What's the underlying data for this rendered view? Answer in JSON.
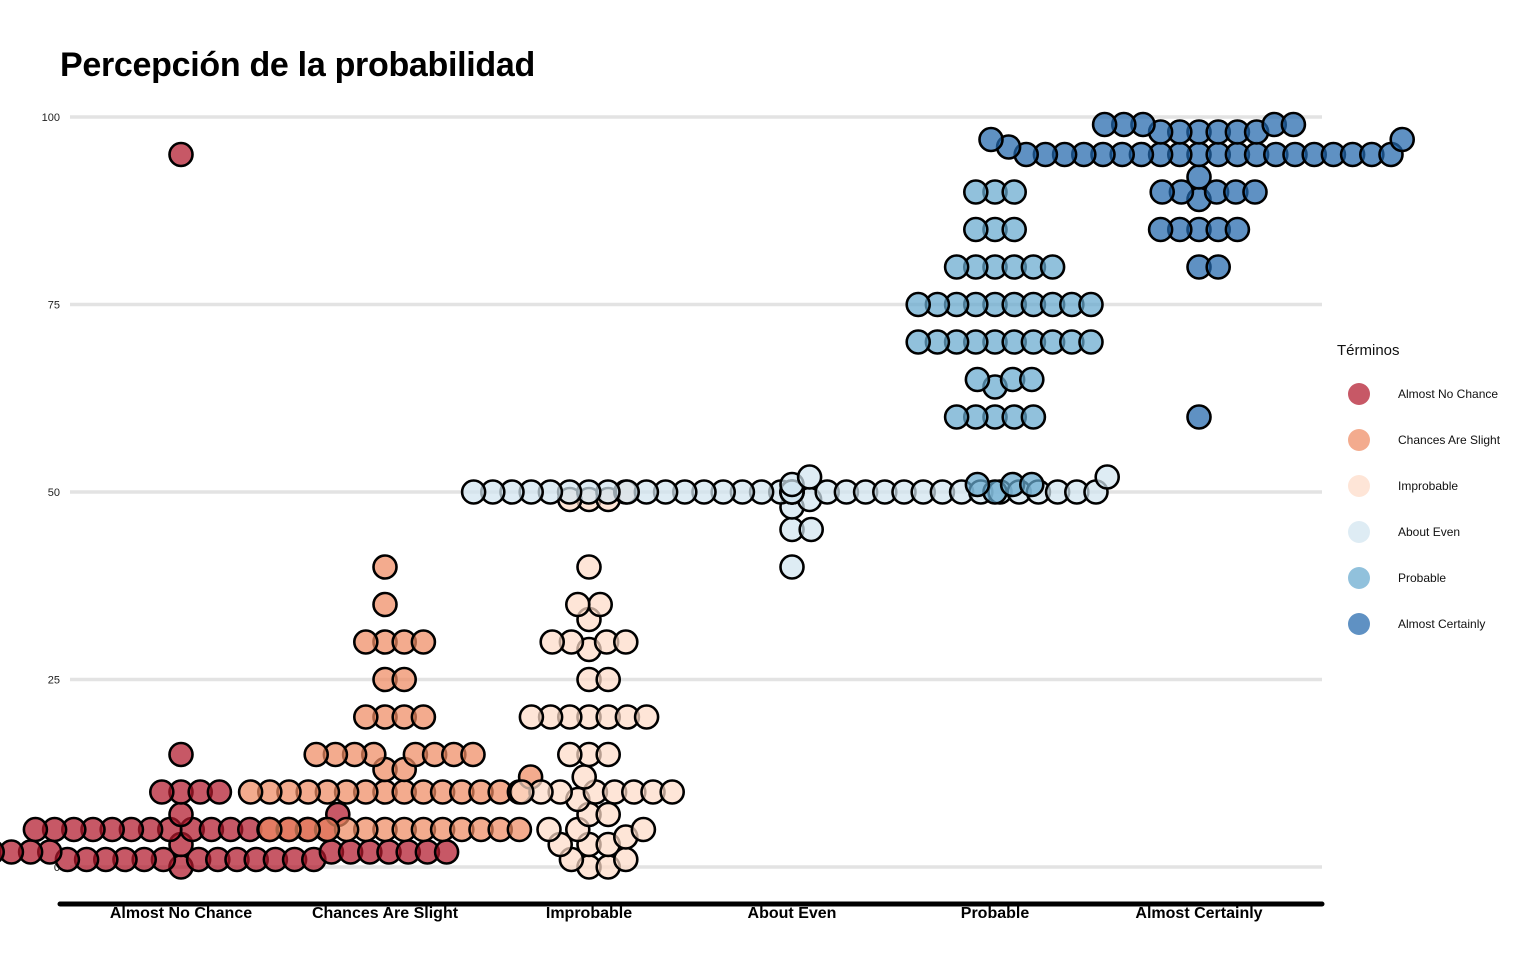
{
  "chart_data": {
    "type": "scatter",
    "title": "Percepción de la probabilidad",
    "xlabel": "",
    "ylabel": "",
    "ylim": [
      0,
      100
    ],
    "yticks": [
      0,
      25,
      50,
      75,
      100
    ],
    "grid": true,
    "legend_title": "Términos",
    "legend_position": "right",
    "categories": [
      "Almost No Chance",
      "Chances Are Slight",
      "Improbable",
      "About Even",
      "Probable",
      "Almost Certainly"
    ],
    "series": [
      {
        "name": "Almost No Chance",
        "color": "#b2182b",
        "values": [
          95,
          15,
          10,
          10,
          10,
          10,
          7,
          7,
          5,
          5,
          5,
          5,
          5,
          5,
          5,
          5,
          5,
          5,
          5,
          5,
          5,
          5,
          5,
          5,
          3,
          3,
          2,
          2,
          2,
          2,
          2,
          2,
          2,
          2,
          2,
          2,
          2,
          2,
          2,
          2,
          1,
          1,
          1,
          1,
          1,
          1,
          1,
          1,
          1,
          1,
          1,
          1,
          1,
          0
        ]
      },
      {
        "name": "Chances Are Slight",
        "color": "#ef8a62",
        "values": [
          40,
          35,
          30,
          30,
          30,
          30,
          25,
          25,
          20,
          20,
          20,
          20,
          15,
          15,
          15,
          15,
          15,
          15,
          15,
          15,
          13,
          13,
          12,
          10,
          10,
          10,
          10,
          10,
          10,
          10,
          10,
          10,
          10,
          10,
          10,
          10,
          10,
          10,
          5,
          5,
          5,
          5,
          5,
          5,
          5,
          5,
          5,
          5,
          5,
          5,
          5,
          5
        ]
      },
      {
        "name": "Improbable",
        "color": "#fddbc7",
        "values": [
          50,
          49,
          49,
          49,
          40,
          35,
          35,
          33,
          30,
          30,
          30,
          30,
          29,
          25,
          25,
          20,
          20,
          20,
          20,
          20,
          20,
          20,
          15,
          15,
          15,
          12,
          10,
          10,
          10,
          10,
          10,
          10,
          10,
          10,
          9,
          7,
          7,
          5,
          5,
          5,
          4,
          3,
          3,
          3,
          1,
          1,
          0,
          0
        ]
      },
      {
        "name": "About Even",
        "color": "#d1e5f0",
        "values": [
          52,
          52,
          51,
          50,
          50,
          50,
          50,
          50,
          50,
          50,
          50,
          50,
          50,
          50,
          50,
          50,
          50,
          50,
          50,
          50,
          50,
          50,
          50,
          50,
          50,
          50,
          50,
          50,
          50,
          50,
          50,
          50,
          50,
          50,
          50,
          50,
          50,
          50,
          50,
          50,
          49,
          48,
          45,
          45,
          40
        ]
      },
      {
        "name": "Probable",
        "color": "#67a9cf",
        "values": [
          90,
          90,
          90,
          85,
          85,
          85,
          80,
          80,
          80,
          80,
          80,
          80,
          75,
          75,
          75,
          75,
          75,
          75,
          75,
          75,
          75,
          75,
          70,
          70,
          70,
          70,
          70,
          70,
          70,
          70,
          70,
          70,
          65,
          65,
          65,
          64,
          60,
          60,
          60,
          60,
          60,
          51,
          51,
          51,
          50
        ]
      },
      {
        "name": "Almost Certainly",
        "color": "#2166ac",
        "values": [
          99,
          99,
          99,
          99,
          99,
          98,
          98,
          98,
          98,
          98,
          98,
          97,
          97,
          96,
          95,
          95,
          95,
          95,
          95,
          95,
          95,
          95,
          95,
          95,
          95,
          95,
          95,
          95,
          95,
          95,
          95,
          95,
          95,
          95,
          92,
          90,
          90,
          90,
          90,
          90,
          89,
          85,
          85,
          85,
          85,
          85,
          80,
          80,
          60
        ]
      }
    ]
  }
}
